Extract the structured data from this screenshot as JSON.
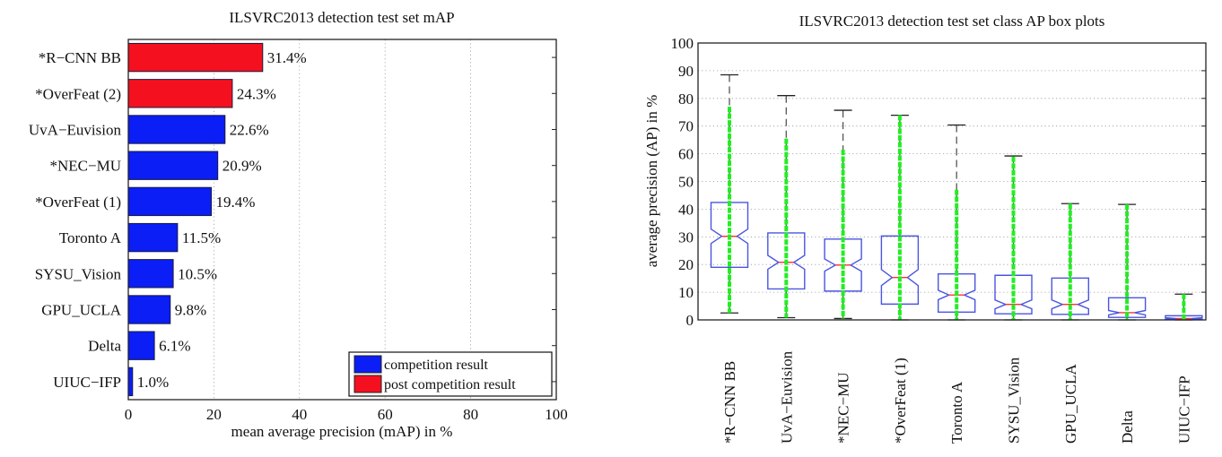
{
  "chart_data": [
    {
      "type": "bar",
      "orientation": "horizontal",
      "title": "ILSVRC2013 detection test set mAP",
      "xlabel": "mean average precision (mAP) in %",
      "ylabel": "",
      "xlim": [
        0,
        100
      ],
      "xticks": [
        0,
        20,
        40,
        60,
        80,
        100
      ],
      "grid": "vertical-dotted",
      "legend_position": "bottom-right",
      "legend": [
        {
          "label": "competition result",
          "color": "#0a1ef5"
        },
        {
          "label": "post competition result",
          "color": "#f51020"
        }
      ],
      "categories": [
        "*R−CNN BB",
        "*OverFeat (2)",
        "UvA−Euvision",
        "*NEC−MU",
        "*OverFeat (1)",
        "Toronto A",
        "SYSU_Vision",
        "GPU_UCLA",
        "Delta",
        "UIUC−IFP"
      ],
      "values": [
        31.4,
        24.3,
        22.6,
        20.9,
        19.4,
        11.5,
        10.5,
        9.8,
        6.1,
        1.0
      ],
      "value_labels": [
        "31.4%",
        "24.3%",
        "22.6%",
        "20.9%",
        "19.4%",
        "11.5%",
        "10.5%",
        "9.8%",
        "6.1%",
        "1.0%"
      ],
      "groups": [
        "post",
        "post",
        "competition",
        "competition",
        "competition",
        "competition",
        "competition",
        "competition",
        "competition",
        "competition"
      ]
    },
    {
      "type": "box",
      "title": "ILSVRC2013 detection test set class AP box plots",
      "xlabel": "",
      "ylabel": "average precision (AP) in %",
      "ylim": [
        0,
        100
      ],
      "yticks": [
        0,
        10,
        20,
        30,
        40,
        50,
        60,
        70,
        80,
        90,
        100
      ],
      "grid": "horizontal-dotted",
      "notched": true,
      "colors": {
        "box": "#4a55e0",
        "median": "#ff3030",
        "whisker": "#555555",
        "points": "#22ee22"
      },
      "categories": [
        "*R−CNN BB",
        "UvA−Euvision",
        "*NEC−MU",
        "*OverFeat (1)",
        "Toronto A",
        "SYSU_Vision",
        "GPU_UCLA",
        "Delta",
        "UIUC−IFP"
      ],
      "series": [
        {
          "name": "*R−CNN BB",
          "min": 2.5,
          "q1": 19.0,
          "median": 30.2,
          "q3": 42.4,
          "max": 88.5,
          "notch": [
            27.6,
            32.8
          ],
          "points_range": [
            2.5,
            77
          ]
        },
        {
          "name": "UvA−Euvision",
          "min": 0.8,
          "q1": 11.2,
          "median": 20.8,
          "q3": 31.4,
          "max": 81.0,
          "notch": [
            18.3,
            23.3
          ],
          "points_range": [
            0.8,
            65.5
          ]
        },
        {
          "name": "*NEC−MU",
          "min": 0.5,
          "q1": 10.4,
          "median": 19.8,
          "q3": 29.2,
          "max": 75.7,
          "notch": [
            17.6,
            22.0
          ],
          "points_range": [
            0.5,
            61.5
          ]
        },
        {
          "name": "*OverFeat (1)",
          "min": 0.0,
          "q1": 5.7,
          "median": 15.3,
          "q3": 30.3,
          "max": 73.9,
          "notch": [
            12.4,
            18.2
          ],
          "points_range": [
            0.0,
            74
          ]
        },
        {
          "name": "Toronto A",
          "min": 0.0,
          "q1": 2.8,
          "median": 9.0,
          "q3": 16.6,
          "max": 70.4,
          "notch": [
            7.3,
            10.7
          ],
          "points_range": [
            0.0,
            47
          ]
        },
        {
          "name": "SYSU_Vision",
          "min": 0.0,
          "q1": 2.2,
          "median": 5.6,
          "q3": 16.1,
          "max": 59.2,
          "notch": [
            4.0,
            7.2
          ],
          "points_range": [
            0.0,
            59
          ]
        },
        {
          "name": "GPU_UCLA",
          "min": 0.0,
          "q1": 2.0,
          "median": 5.6,
          "q3": 15.1,
          "max": 42.0,
          "notch": [
            4.0,
            7.2
          ],
          "points_range": [
            0.0,
            42
          ]
        },
        {
          "name": "Delta",
          "min": 0.0,
          "q1": 0.9,
          "median": 2.6,
          "q3": 8.0,
          "max": 41.7,
          "notch": [
            1.8,
            3.4
          ],
          "points_range": [
            0.0,
            41.7
          ]
        },
        {
          "name": "UIUC−IFP",
          "min": 0.0,
          "q1": 0.1,
          "median": 0.5,
          "q3": 1.5,
          "max": 9.3,
          "notch": [
            0.3,
            0.8
          ],
          "points_range": [
            0.0,
            9.3
          ]
        }
      ]
    }
  ]
}
